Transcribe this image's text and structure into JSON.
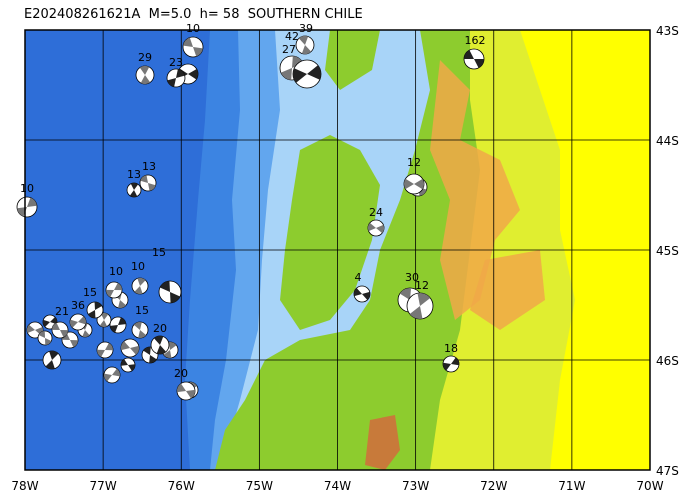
{
  "title": "E202408261621A  M=5.0  h= 58  SOUTHERN CHILE",
  "latitude_labels": [
    "43S",
    "44S",
    "45S",
    "46S",
    "47S"
  ],
  "longitude_labels": [
    "78W",
    "77W",
    "76W",
    "75W",
    "74W",
    "73W",
    "72W",
    "71W",
    "70W"
  ],
  "focal_mechanism_labels": [
    "162",
    "42",
    "39",
    "27",
    "10",
    "29",
    "23",
    "12",
    "13",
    "13",
    "10",
    "24",
    "15",
    "10",
    "10",
    "4",
    "30",
    "12",
    "18",
    "20",
    "15",
    "15",
    "36",
    "21",
    "20"
  ]
}
